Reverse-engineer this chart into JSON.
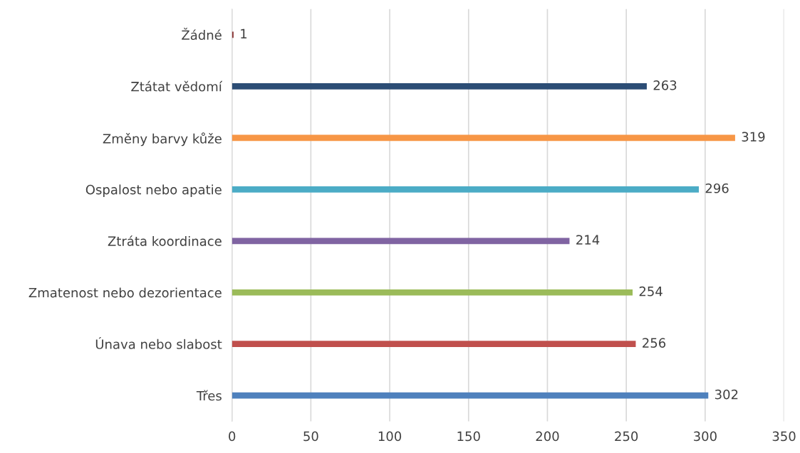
{
  "chart_data": {
    "type": "bar",
    "orientation": "horizontal",
    "categories": [
      "Žádné",
      "Ztátat vědomí",
      "Změny barvy kůže",
      "Ospalost nebo apatie",
      "Ztráta koordinace",
      "Zmatenost nebo dezorientace",
      "Únava nebo slabost",
      "Třes"
    ],
    "values": [
      1,
      263,
      319,
      296,
      214,
      254,
      256,
      302
    ],
    "colors": [
      "#8e3b3b",
      "#2c4d75",
      "#f79646",
      "#4bacc6",
      "#8064a2",
      "#9bbb59",
      "#c0504d",
      "#4f81bd"
    ],
    "xlim": [
      0,
      350
    ],
    "xticks": [
      0,
      50,
      100,
      150,
      200,
      250,
      300,
      350
    ],
    "grid": "x",
    "data_labels": true
  }
}
